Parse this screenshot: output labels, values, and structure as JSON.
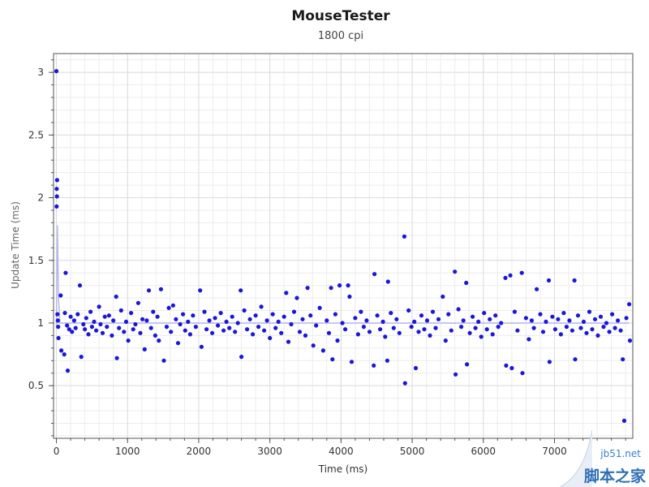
{
  "chart_data": {
    "type": "scatter",
    "title": "MouseTester",
    "subtitle": "1800 cpi",
    "xlabel": "Time (ms)",
    "ylabel": "Update Time (ms)",
    "xlim": [
      -40,
      8100
    ],
    "ylim": [
      0.08,
      3.15
    ],
    "xticks": [
      0,
      1000,
      2000,
      3000,
      4000,
      5000,
      6000,
      7000
    ],
    "xtick_labels": [
      "0",
      "1000",
      "2000",
      "3000",
      "4000",
      "5000",
      "6000",
      "7000"
    ],
    "yticks": [
      0.5,
      1,
      1.5,
      2,
      2.5,
      3
    ],
    "ytick_labels": [
      "0.5",
      "1",
      "1.5",
      "2",
      "2.5",
      "3"
    ],
    "grid": true,
    "marker_color": "#1c17d6",
    "line_color": "#b4b4ee",
    "series": [
      {
        "type": "scatter",
        "points": [
          [
            0,
            3.01
          ],
          [
            10,
            2.14
          ],
          [
            5,
            2.07
          ],
          [
            8,
            2.01
          ],
          [
            3,
            1.93
          ],
          [
            15,
            1.07
          ],
          [
            20,
            1.02
          ],
          [
            25,
            0.97
          ],
          [
            30,
            0.88
          ],
          [
            60,
            1.22
          ],
          [
            70,
            0.78
          ],
          [
            110,
            0.75
          ],
          [
            130,
            1.4
          ],
          [
            160,
            0.62
          ],
          [
            330,
            1.3
          ],
          [
            350,
            0.73
          ],
          [
            840,
            1.21
          ],
          [
            850,
            0.72
          ],
          [
            1010,
            0.86
          ],
          [
            1300,
            1.26
          ],
          [
            1470,
            1.27
          ],
          [
            1510,
            0.7
          ],
          [
            1640,
            1.14
          ],
          [
            2020,
            1.26
          ],
          [
            2040,
            0.81
          ],
          [
            2590,
            1.26
          ],
          [
            2600,
            0.73
          ],
          [
            3230,
            1.24
          ],
          [
            3380,
            1.2
          ],
          [
            3530,
            1.28
          ],
          [
            3750,
            0.78
          ],
          [
            3860,
            1.28
          ],
          [
            3880,
            0.71
          ],
          [
            3980,
            1.3
          ],
          [
            4100,
            1.3
          ],
          [
            4120,
            1.21
          ],
          [
            4150,
            0.69
          ],
          [
            4470,
            1.39
          ],
          [
            4460,
            0.66
          ],
          [
            4660,
            1.33
          ],
          [
            4650,
            0.7
          ],
          [
            4890,
            1.69
          ],
          [
            4900,
            0.52
          ],
          [
            5050,
            0.64
          ],
          [
            5430,
            1.21
          ],
          [
            5600,
            1.41
          ],
          [
            5610,
            0.59
          ],
          [
            5760,
            1.32
          ],
          [
            5770,
            0.67
          ],
          [
            6310,
            1.36
          ],
          [
            6320,
            0.66
          ],
          [
            6380,
            1.38
          ],
          [
            6400,
            0.64
          ],
          [
            6540,
            1.4
          ],
          [
            6550,
            0.6
          ],
          [
            6750,
            1.27
          ],
          [
            6920,
            1.34
          ],
          [
            6930,
            0.69
          ],
          [
            7280,
            1.34
          ],
          [
            7290,
            0.71
          ],
          [
            7960,
            0.71
          ],
          [
            7980,
            0.22
          ],
          [
            8050,
            1.15
          ],
          [
            8060,
            0.86
          ],
          [
            120,
            1.08
          ],
          [
            150,
            0.98
          ],
          [
            180,
            0.95
          ],
          [
            200,
            1.05
          ],
          [
            220,
            0.93
          ],
          [
            250,
            1.02
          ],
          [
            270,
            0.96
          ],
          [
            300,
            1.07
          ],
          [
            380,
            0.99
          ],
          [
            400,
            0.95
          ],
          [
            420,
            1.04
          ],
          [
            450,
            0.91
          ],
          [
            480,
            1.09
          ],
          [
            500,
            0.97
          ],
          [
            530,
            1.01
          ],
          [
            560,
            0.94
          ],
          [
            600,
            1.13
          ],
          [
            620,
            0.99
          ],
          [
            650,
            0.92
          ],
          [
            680,
            1.05
          ],
          [
            710,
            0.97
          ],
          [
            740,
            1.06
          ],
          [
            780,
            0.9
          ],
          [
            800,
            1.02
          ],
          [
            880,
            0.96
          ],
          [
            910,
            1.1
          ],
          [
            950,
            0.93
          ],
          [
            980,
            1.01
          ],
          [
            1050,
            1.08
          ],
          [
            1080,
            0.95
          ],
          [
            1110,
            0.99
          ],
          [
            1150,
            1.16
          ],
          [
            1180,
            0.92
          ],
          [
            1210,
            1.03
          ],
          [
            1240,
            0.79
          ],
          [
            1270,
            1.02
          ],
          [
            1330,
            0.96
          ],
          [
            1360,
            1.09
          ],
          [
            1390,
            0.9
          ],
          [
            1420,
            1.05
          ],
          [
            1440,
            0.86
          ],
          [
            1550,
            0.97
          ],
          [
            1580,
            1.12
          ],
          [
            1610,
            0.93
          ],
          [
            1680,
            1.03
          ],
          [
            1710,
            0.84
          ],
          [
            1740,
            0.99
          ],
          [
            1780,
            1.07
          ],
          [
            1810,
            0.94
          ],
          [
            1850,
            1.01
          ],
          [
            1880,
            0.91
          ],
          [
            1920,
            1.06
          ],
          [
            1960,
            0.97
          ],
          [
            2080,
            1.09
          ],
          [
            2110,
            0.95
          ],
          [
            2150,
            1.02
          ],
          [
            2190,
            0.92
          ],
          [
            2230,
            1.04
          ],
          [
            2270,
            0.98
          ],
          [
            2310,
            1.08
          ],
          [
            2350,
            0.94
          ],
          [
            2390,
            1.01
          ],
          [
            2430,
            0.96
          ],
          [
            2470,
            1.05
          ],
          [
            2510,
            0.93
          ],
          [
            2550,
            1.0
          ],
          [
            2640,
            1.1
          ],
          [
            2680,
            0.95
          ],
          [
            2720,
            1.03
          ],
          [
            2760,
            0.91
          ],
          [
            2800,
            1.06
          ],
          [
            2840,
            0.97
          ],
          [
            2880,
            1.13
          ],
          [
            2920,
            0.94
          ],
          [
            2960,
            1.02
          ],
          [
            3000,
            0.88
          ],
          [
            3040,
            1.07
          ],
          [
            3080,
            0.96
          ],
          [
            3120,
            1.01
          ],
          [
            3160,
            0.92
          ],
          [
            3200,
            1.05
          ],
          [
            3260,
            0.85
          ],
          [
            3300,
            0.99
          ],
          [
            3340,
            1.09
          ],
          [
            3420,
            0.93
          ],
          [
            3460,
            1.03
          ],
          [
            3500,
            0.9
          ],
          [
            3570,
            1.06
          ],
          [
            3610,
            0.82
          ],
          [
            3650,
            0.98
          ],
          [
            3700,
            1.12
          ],
          [
            3800,
            1.02
          ],
          [
            3830,
            0.92
          ],
          [
            3920,
            1.07
          ],
          [
            3950,
            0.86
          ],
          [
            4020,
            1.0
          ],
          [
            4060,
            0.95
          ],
          [
            4200,
            1.04
          ],
          [
            4240,
            0.91
          ],
          [
            4280,
            1.09
          ],
          [
            4320,
            0.97
          ],
          [
            4360,
            1.02
          ],
          [
            4400,
            0.93
          ],
          [
            4510,
            1.06
          ],
          [
            4550,
            0.95
          ],
          [
            4590,
            1.01
          ],
          [
            4620,
            0.89
          ],
          [
            4700,
            1.08
          ],
          [
            4740,
            0.96
          ],
          [
            4780,
            1.03
          ],
          [
            4820,
            0.92
          ],
          [
            4950,
            1.1
          ],
          [
            4990,
            0.97
          ],
          [
            5030,
            1.01
          ],
          [
            5090,
            0.93
          ],
          [
            5130,
            1.06
          ],
          [
            5170,
            0.95
          ],
          [
            5210,
            1.02
          ],
          [
            5250,
            0.9
          ],
          [
            5290,
            1.09
          ],
          [
            5330,
            0.96
          ],
          [
            5370,
            1.03
          ],
          [
            5470,
            0.86
          ],
          [
            5510,
            1.07
          ],
          [
            5550,
            0.94
          ],
          [
            5650,
            1.11
          ],
          [
            5690,
            0.97
          ],
          [
            5720,
            1.02
          ],
          [
            5810,
            0.92
          ],
          [
            5850,
            1.05
          ],
          [
            5890,
            0.96
          ],
          [
            5930,
            1.01
          ],
          [
            5970,
            0.89
          ],
          [
            6010,
            1.08
          ],
          [
            6050,
            0.95
          ],
          [
            6090,
            1.03
          ],
          [
            6130,
            0.91
          ],
          [
            6170,
            1.06
          ],
          [
            6210,
            0.97
          ],
          [
            6250,
            1.0
          ],
          [
            6440,
            1.09
          ],
          [
            6480,
            0.94
          ],
          [
            6600,
            1.04
          ],
          [
            6640,
            0.87
          ],
          [
            6680,
            1.02
          ],
          [
            6710,
            0.96
          ],
          [
            6800,
            1.07
          ],
          [
            6840,
            0.93
          ],
          [
            6880,
            1.01
          ],
          [
            6970,
            1.05
          ],
          [
            7010,
            0.95
          ],
          [
            7050,
            1.03
          ],
          [
            7090,
            0.91
          ],
          [
            7130,
            1.08
          ],
          [
            7170,
            0.97
          ],
          [
            7210,
            1.02
          ],
          [
            7250,
            0.94
          ],
          [
            7330,
            1.06
          ],
          [
            7370,
            0.96
          ],
          [
            7410,
            1.01
          ],
          [
            7450,
            0.92
          ],
          [
            7490,
            1.09
          ],
          [
            7530,
            0.95
          ],
          [
            7570,
            1.03
          ],
          [
            7610,
            0.9
          ],
          [
            7650,
            1.05
          ],
          [
            7690,
            0.97
          ],
          [
            7730,
            1.0
          ],
          [
            7770,
            0.93
          ],
          [
            7810,
            1.07
          ],
          [
            7850,
            0.96
          ],
          [
            7890,
            1.02
          ],
          [
            7930,
            0.94
          ],
          [
            8010,
            1.04
          ]
        ]
      },
      {
        "type": "line",
        "points": [
          [
            0,
            0.98
          ],
          [
            15,
            1.78
          ],
          [
            30,
            1.2
          ],
          [
            50,
            1.0
          ],
          [
            100,
            1.0
          ],
          [
            8050,
            1.0
          ]
        ]
      }
    ]
  },
  "watermark": {
    "site": "jb51.net",
    "cn": "脚本之家"
  }
}
